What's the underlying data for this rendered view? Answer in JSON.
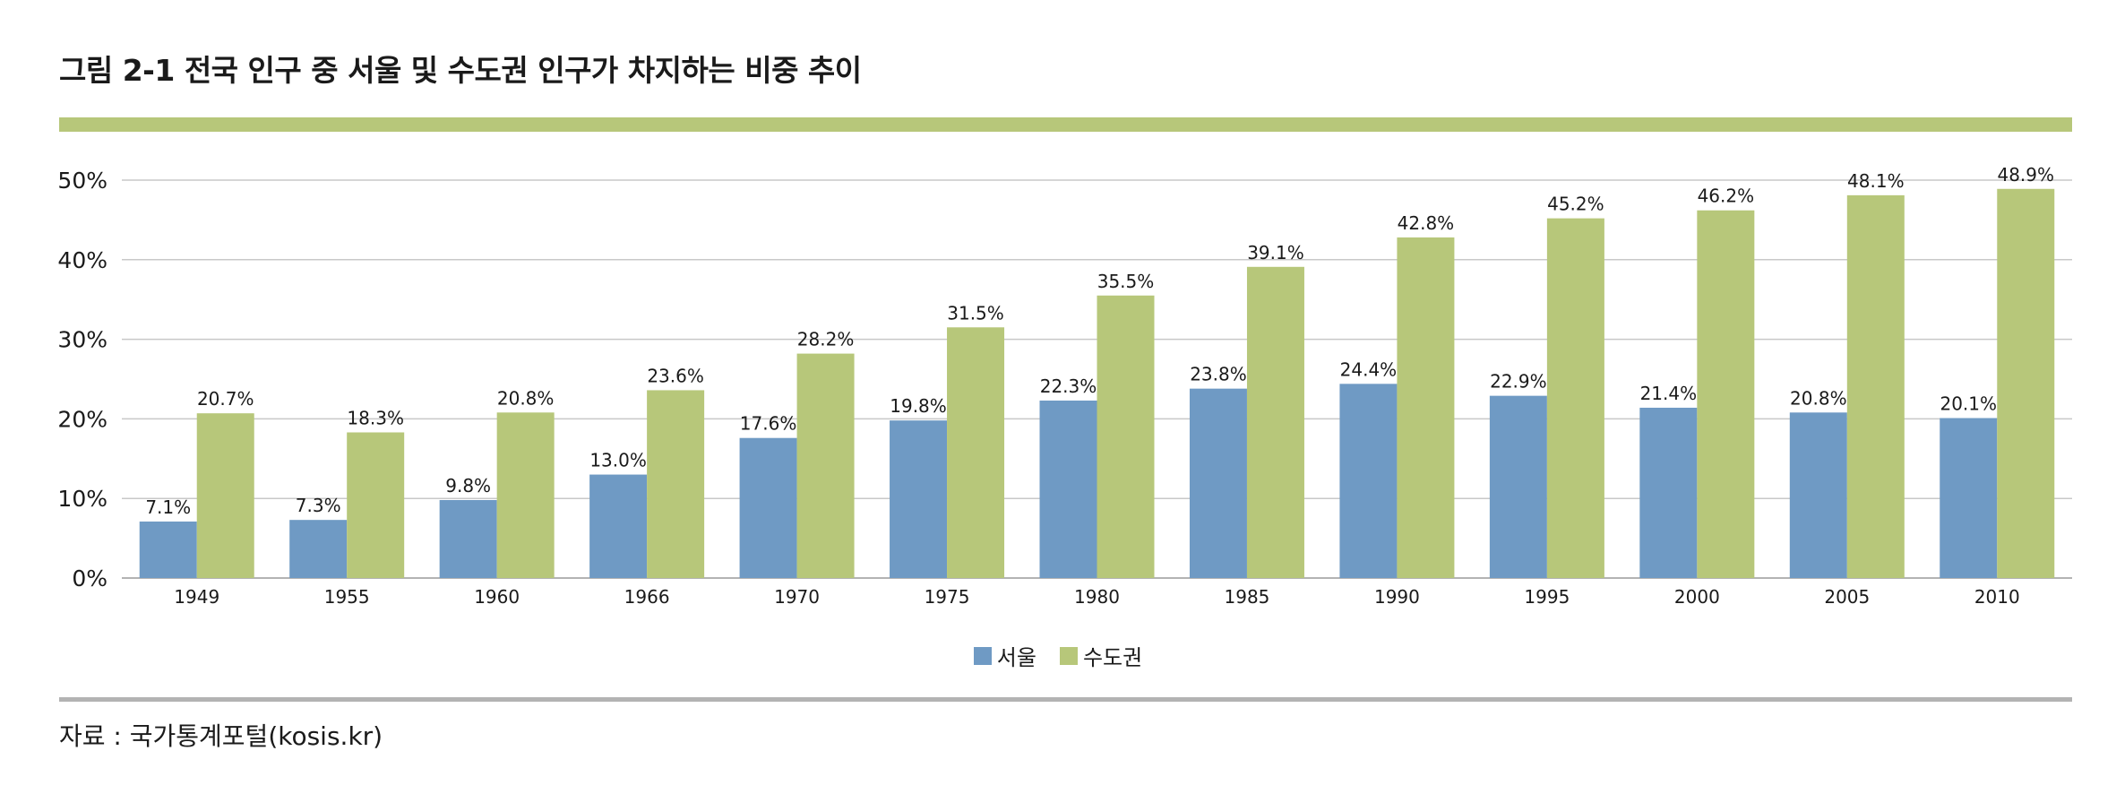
{
  "title": "그림 2-1 전국 인구 중 서울 및 수도권 인구가 차지하는 비중 추이",
  "source": "자료 : 국가통계포털(kosis.kr)",
  "colors": {
    "rule": "#b7c77a",
    "bottom_rule": "#b3b3b3",
    "seoul": "#6f9ac4",
    "capital": "#b7c77a",
    "grid": "#c8c8c8"
  },
  "chart_data": {
    "type": "bar",
    "categories": [
      "1949",
      "1955",
      "1960",
      "1966",
      "1970",
      "1975",
      "1980",
      "1985",
      "1990",
      "1995",
      "2000",
      "2005",
      "2010"
    ],
    "series": [
      {
        "name": "서울",
        "values": [
          7.1,
          7.3,
          9.8,
          13.0,
          17.6,
          19.8,
          22.3,
          23.8,
          24.4,
          22.9,
          21.4,
          20.8,
          20.1
        ],
        "labels": [
          "7.1%",
          "7.3%",
          "9.8%",
          "13.0%",
          "17.6%",
          "19.8%",
          "22.3%",
          "23.8%",
          "24.4%",
          "22.9%",
          "21.4%",
          "20.8%",
          "20.1%"
        ]
      },
      {
        "name": "수도권",
        "values": [
          20.7,
          18.3,
          20.8,
          23.6,
          28.2,
          31.5,
          35.5,
          39.1,
          42.8,
          45.2,
          46.2,
          48.1,
          48.9
        ],
        "labels": [
          "20.7%",
          "18.3%",
          "20.8%",
          "23.6%",
          "28.2%",
          "31.5%",
          "35.5%",
          "39.1%",
          "42.8%",
          "45.2%",
          "46.2%",
          "48.1%",
          "48.9%"
        ]
      }
    ],
    "yticks": [
      "0%",
      "10%",
      "20%",
      "30%",
      "40%",
      "50%"
    ],
    "ylim": [
      0,
      50
    ],
    "grid": true,
    "legend_position": "bottom-center"
  }
}
